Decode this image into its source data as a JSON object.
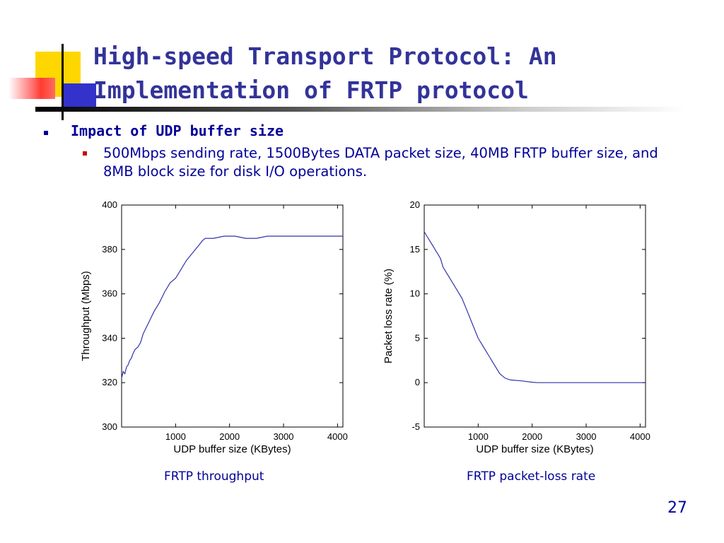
{
  "slide": {
    "title_line1": "High-speed Transport Protocol: An",
    "title_line2": "Implementation of FRTP protocol",
    "bullet_level1": "Impact of UDP buffer size",
    "bullet_level2": "500Mbps sending rate, 1500Bytes DATA packet size, 40MB FRTP buffer size, and 8MB block size for disk I/O operations.",
    "page_number": "27",
    "bullet_colors": {
      "level1": "#000099",
      "level2": "#cc0000"
    }
  },
  "chart_data": [
    {
      "type": "line",
      "caption": "FRTP throughput",
      "xlabel": "UDP buffer size (KBytes)",
      "ylabel": "Throughput (Mbps)",
      "xlim": [
        0,
        4100
      ],
      "ylim": [
        300,
        400
      ],
      "xticks": [
        1000,
        2000,
        3000,
        4000
      ],
      "yticks": [
        300,
        320,
        340,
        360,
        380,
        400
      ],
      "grid": false,
      "line_color": "#3333aa",
      "series": [
        {
          "x": [
            0,
            30,
            60,
            90,
            120,
            150,
            180,
            210,
            250,
            300,
            350,
            400,
            500,
            600,
            700,
            800,
            900,
            1000,
            1100,
            1200,
            1300,
            1400,
            1500,
            1550,
            1700,
            1900,
            2100,
            2300,
            2500,
            2700,
            2900,
            3100,
            3300,
            3500,
            3700,
            3900,
            4100
          ],
          "y": [
            322,
            325,
            324,
            327,
            328,
            330,
            331,
            333,
            335,
            336,
            338,
            342,
            347,
            352,
            356,
            361,
            365,
            367,
            371,
            375,
            378,
            381,
            384,
            385,
            385,
            386,
            386,
            385,
            385,
            386,
            386,
            386,
            386,
            386,
            386,
            386,
            386
          ]
        }
      ]
    },
    {
      "type": "line",
      "caption": "FRTP packet-loss rate",
      "xlabel": "UDP buffer size (KBytes)",
      "ylabel": "Packet loss rate (%)",
      "xlim": [
        0,
        4100
      ],
      "ylim": [
        -5,
        20
      ],
      "xticks": [
        1000,
        2000,
        3000,
        4000
      ],
      "yticks": [
        -5,
        0,
        5,
        10,
        15,
        20
      ],
      "grid": false,
      "line_color": "#3333aa",
      "series": [
        {
          "x": [
            0,
            50,
            100,
            150,
            200,
            250,
            300,
            350,
            400,
            450,
            500,
            600,
            700,
            800,
            900,
            1000,
            1100,
            1200,
            1300,
            1400,
            1500,
            1600,
            1800,
            2000,
            2100,
            2500,
            3000,
            3500,
            4100
          ],
          "y": [
            17,
            16.5,
            16,
            15.5,
            15,
            14.5,
            14,
            13,
            12.5,
            12,
            11.5,
            10.5,
            9.5,
            8,
            6.5,
            5,
            4,
            3,
            2,
            1,
            0.5,
            0.3,
            0.2,
            0.05,
            0,
            0,
            0,
            0,
            0
          ]
        }
      ]
    }
  ]
}
